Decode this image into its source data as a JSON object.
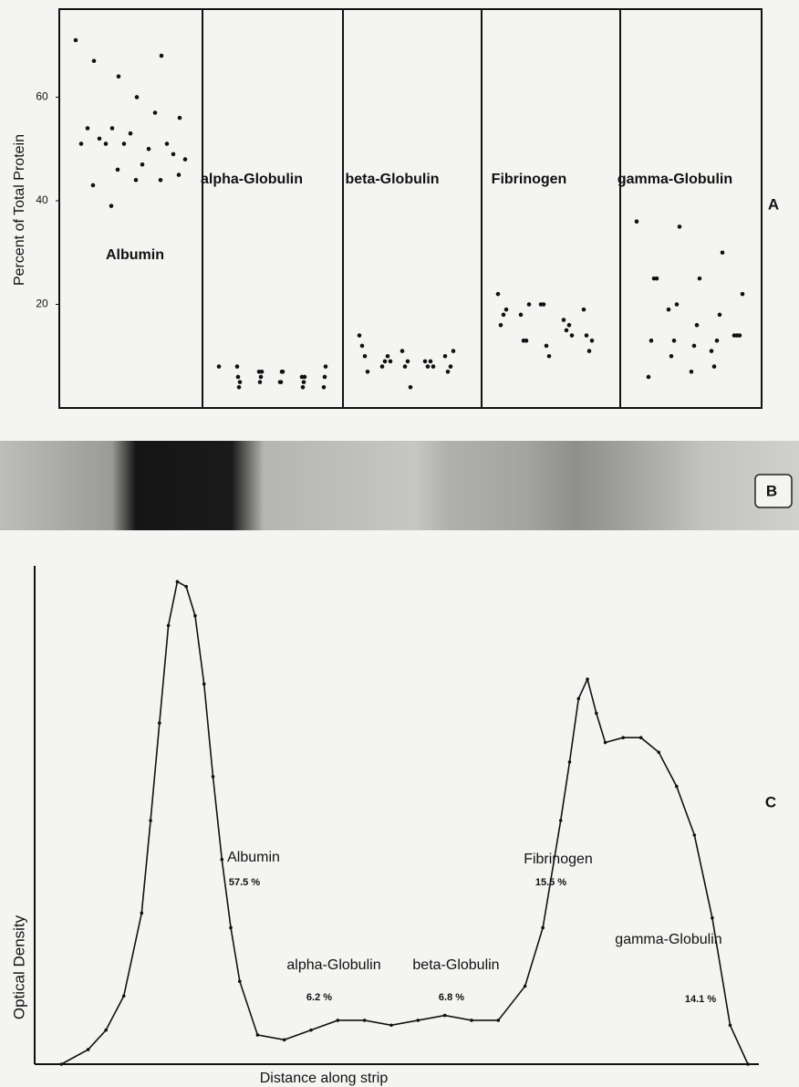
{
  "chart_data": [
    {
      "type": "strip",
      "panel": "A",
      "ylabel": "Percent of Total Protein",
      "ylim": [
        0,
        77
      ],
      "yticks": [
        20,
        40,
        60
      ],
      "groups": [
        {
          "name": "Albumin",
          "values": [
            71,
            64,
            68,
            67,
            60,
            56,
            54,
            57,
            54,
            53,
            49,
            51,
            50,
            51,
            51,
            51,
            52,
            47,
            48,
            46,
            44,
            43,
            44,
            45,
            39
          ]
        },
        {
          "name": "alpha-Globulin",
          "values": [
            8,
            7,
            6,
            5,
            7,
            8,
            6,
            5,
            4,
            7,
            6,
            5,
            4,
            6,
            5,
            4,
            7,
            6,
            8,
            5
          ]
        },
        {
          "name": "beta-Globulin",
          "values": [
            14,
            11,
            10,
            8,
            9,
            12,
            8,
            7,
            9,
            8,
            10,
            9,
            8,
            10,
            9,
            7,
            4,
            11,
            9,
            8
          ]
        },
        {
          "name": "Fibrinogen",
          "values": [
            22,
            20,
            19,
            18,
            17,
            16,
            20,
            14,
            13,
            15,
            18,
            12,
            11,
            13,
            16,
            19,
            10,
            13,
            20,
            14
          ]
        },
        {
          "name": "gamma-Globulin",
          "values": [
            36,
            35,
            30,
            25,
            25,
            22,
            20,
            18,
            25,
            16,
            14,
            13,
            13,
            13,
            12,
            14,
            10,
            8,
            6,
            7,
            14,
            19,
            11
          ]
        }
      ]
    },
    {
      "type": "line",
      "panel": "C",
      "ylabel": "Optical Density",
      "xlabel": "Distance along strip",
      "xlim": [
        0,
        80
      ],
      "ylim": [
        0,
        100
      ],
      "x": [
        3,
        6,
        8,
        10,
        12,
        13,
        14,
        15,
        16,
        17,
        18,
        19,
        20,
        21,
        22,
        23,
        25,
        28,
        31,
        34,
        37,
        40,
        43,
        46,
        49,
        52,
        55,
        57,
        59,
        60,
        61,
        62,
        63,
        64,
        66,
        68,
        70,
        72,
        74,
        76,
        78,
        80
      ],
      "values": [
        0,
        3,
        7,
        14,
        31,
        50,
        70,
        90,
        99,
        98,
        92,
        78,
        59,
        42,
        28,
        17,
        6,
        5,
        7,
        9,
        9,
        8,
        9,
        10,
        9,
        9,
        16,
        28,
        50,
        62,
        75,
        79,
        72,
        66,
        67,
        67,
        64,
        57,
        47,
        30,
        8,
        0
      ],
      "fractions": {
        "names": [
          "Albumin",
          "alpha-Globulin",
          "beta-Globulin",
          "Fibrinogen",
          "gamma-Globulin"
        ],
        "values": [
          57.5,
          6.2,
          6.8,
          15.5,
          14.1
        ],
        "value_labels": [
          "57.5 %",
          "6.2 %",
          "6.8 %",
          "15.5 %",
          "14.1 %"
        ]
      }
    }
  ],
  "strip_panel": "B"
}
